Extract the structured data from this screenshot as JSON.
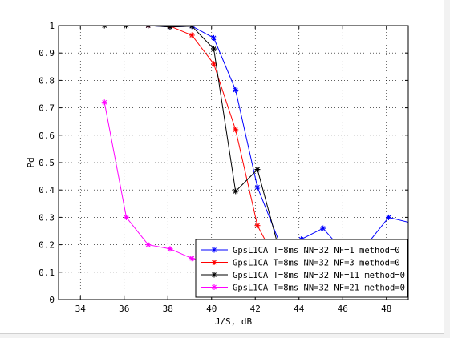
{
  "chart_data": {
    "type": "line",
    "title": "",
    "xlabel": "J/S, dB",
    "ylabel": "Pd",
    "xlim": [
      33,
      49
    ],
    "ylim": [
      0,
      1
    ],
    "xticks": [
      "34",
      "36",
      "38",
      "40",
      "42",
      "44",
      "46",
      "48"
    ],
    "yticks": [
      "0",
      "0.1",
      "0.2",
      "0.3",
      "0.4",
      "0.5",
      "0.6",
      "0.7",
      "0.8",
      "0.9",
      "1"
    ],
    "grid": true,
    "legend_position": "bottom-right",
    "marker": "star",
    "series": [
      {
        "name": "GpsL1CA T=8ms NN=32 NF=1 method=0",
        "color": "#0000ff",
        "x": [
          37.1,
          38.1,
          39.1,
          40.1,
          41.1,
          42.1,
          43.1,
          44.1,
          45.1,
          46.1,
          47.1,
          48.1,
          49.1
        ],
        "y": [
          1.0,
          0.995,
          0.998,
          0.955,
          0.765,
          0.41,
          0.21,
          0.22,
          0.26,
          0.17,
          0.2,
          0.3,
          0.28
        ]
      },
      {
        "name": "GpsL1CA T=8ms NN=32 NF=3 method=0",
        "color": "#ff0000",
        "x": [
          37.1,
          38.1,
          39.1,
          40.1,
          41.1,
          42.1,
          43.1
        ],
        "y": [
          1.0,
          0.998,
          0.965,
          0.86,
          0.62,
          0.27,
          0.12
        ]
      },
      {
        "name": "GpsL1CA T=8ms NN=32 NF=11 method=0",
        "color": "#000000",
        "x": [
          35.1,
          36.1,
          37.1,
          38.1,
          39.1,
          40.1,
          41.1,
          42.1,
          43.1
        ],
        "y": [
          1.0,
          1.0,
          1.0,
          0.995,
          0.998,
          0.915,
          0.395,
          0.475,
          0.18
        ]
      },
      {
        "name": "GpsL1CA T=8ms NN=32 NF=21 method=0",
        "color": "#ff00ff",
        "x": [
          35.1,
          36.1,
          37.1,
          38.1,
          39.1,
          40.1
        ],
        "y": [
          0.72,
          0.3,
          0.2,
          0.185,
          0.15,
          0.13
        ]
      }
    ]
  }
}
